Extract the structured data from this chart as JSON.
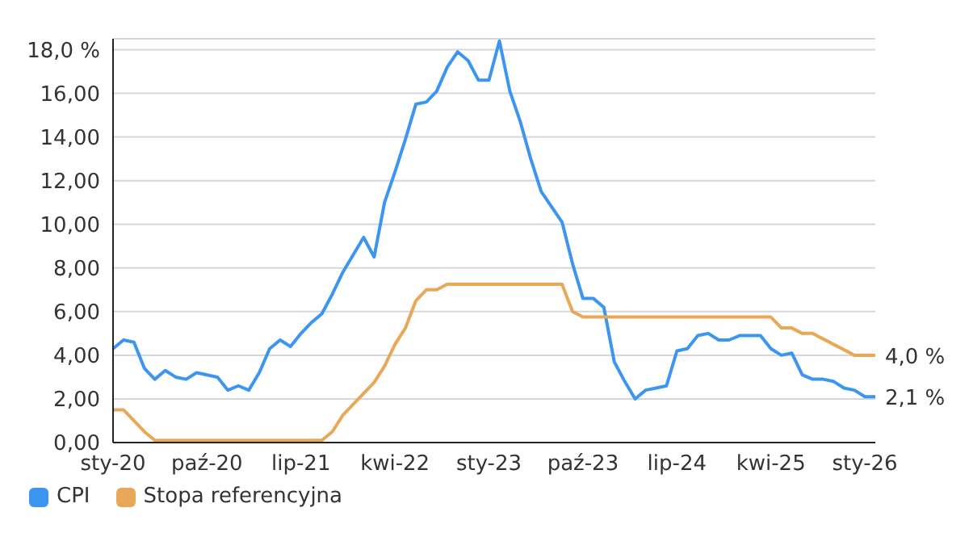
{
  "chart_data": {
    "type": "line",
    "categories": [
      "sty-20",
      null,
      null,
      null,
      null,
      null,
      null,
      null,
      null,
      "paź-20",
      null,
      null,
      null,
      null,
      null,
      null,
      null,
      null,
      "lip-21",
      null,
      null,
      null,
      null,
      null,
      null,
      null,
      null,
      "kwi-22",
      null,
      null,
      null,
      null,
      null,
      null,
      null,
      null,
      "sty-23",
      null,
      null,
      null,
      null,
      null,
      null,
      null,
      null,
      "paź-23",
      null,
      null,
      null,
      null,
      null,
      null,
      null,
      null,
      "lip-24",
      null,
      null,
      null,
      null,
      null,
      null,
      null,
      null,
      "kwi-25",
      null,
      null,
      null,
      null,
      null,
      null,
      null,
      null,
      "sty-26",
      null
    ],
    "series": [
      {
        "name": "CPI",
        "color": "#3c96f0",
        "values": [
          4.3,
          4.7,
          4.6,
          3.4,
          2.9,
          3.3,
          3.0,
          2.9,
          3.2,
          3.1,
          3.0,
          2.4,
          2.6,
          2.4,
          3.2,
          4.3,
          4.7,
          4.4,
          5.0,
          5.5,
          5.9,
          6.8,
          7.8,
          8.6,
          9.4,
          8.5,
          11.0,
          12.4,
          13.9,
          15.5,
          15.6,
          16.1,
          17.2,
          17.9,
          17.5,
          16.6,
          16.6,
          18.4,
          16.1,
          14.7,
          13.0,
          11.5,
          10.8,
          10.1,
          8.2,
          6.6,
          6.6,
          6.2,
          3.7,
          2.8,
          2.0,
          2.4,
          2.5,
          2.6,
          4.2,
          4.3,
          4.9,
          5.0,
          4.7,
          4.7,
          4.9,
          4.9,
          4.9,
          4.3,
          4.0,
          4.1,
          3.1,
          2.9,
          2.9,
          2.8,
          2.5,
          2.4,
          2.1,
          2.1
        ],
        "value_labels": [
          null,
          null,
          null,
          null,
          null,
          null,
          null,
          null,
          null,
          null,
          null,
          null,
          null,
          null,
          null,
          null,
          null,
          null,
          null,
          null,
          null,
          null,
          null,
          null,
          null,
          null,
          null,
          null,
          null,
          null,
          null,
          null,
          null,
          null,
          null,
          null,
          null,
          null,
          null,
          null,
          null,
          null,
          null,
          null,
          null,
          null,
          null,
          null,
          null,
          null,
          null,
          null,
          null,
          null,
          null,
          null,
          null,
          null,
          null,
          null,
          null,
          null,
          null,
          null,
          null,
          null,
          null,
          null,
          null,
          null,
          null,
          null,
          null,
          "2,1 %"
        ]
      },
      {
        "name": "Stopa referencyjna",
        "color": "#e8a857",
        "values": [
          1.5,
          1.5,
          1.0,
          0.5,
          0.1,
          0.1,
          0.1,
          0.1,
          0.1,
          0.1,
          0.1,
          0.1,
          0.1,
          0.1,
          0.1,
          0.1,
          0.1,
          0.1,
          0.1,
          0.1,
          0.1,
          0.5,
          1.25,
          1.75,
          2.25,
          2.75,
          3.5,
          4.5,
          5.25,
          6.5,
          7.0,
          7.0,
          7.25,
          7.25,
          7.25,
          7.25,
          7.25,
          7.25,
          7.25,
          7.25,
          7.25,
          7.25,
          7.25,
          7.25,
          6.0,
          5.75,
          5.75,
          5.75,
          5.75,
          5.75,
          5.75,
          5.75,
          5.75,
          5.75,
          5.75,
          5.75,
          5.75,
          5.75,
          5.75,
          5.75,
          5.75,
          5.75,
          5.75,
          5.75,
          5.25,
          5.25,
          5.0,
          5.0,
          4.75,
          4.5,
          4.25,
          4.0,
          4.0,
          4.0
        ],
        "value_labels": [
          null,
          null,
          null,
          null,
          null,
          null,
          null,
          null,
          null,
          null,
          null,
          null,
          null,
          null,
          null,
          null,
          null,
          null,
          null,
          null,
          null,
          null,
          null,
          null,
          null,
          null,
          null,
          null,
          null,
          null,
          null,
          null,
          null,
          null,
          null,
          null,
          null,
          null,
          null,
          null,
          null,
          null,
          null,
          null,
          null,
          null,
          null,
          null,
          null,
          null,
          null,
          null,
          null,
          null,
          null,
          null,
          null,
          null,
          null,
          null,
          null,
          null,
          null,
          null,
          null,
          null,
          null,
          null,
          null,
          null,
          null,
          null,
          null,
          "4,0 %"
        ]
      }
    ],
    "ylim": [
      0,
      18.5
    ],
    "yticks": [
      {
        "value": 0,
        "label": "0,00"
      },
      {
        "value": 2,
        "label": "2,00"
      },
      {
        "value": 4,
        "label": "4,00"
      },
      {
        "value": 6,
        "label": "6,00"
      },
      {
        "value": 8,
        "label": "8,00"
      },
      {
        "value": 10,
        "label": "10,00"
      },
      {
        "value": 12,
        "label": "12,00"
      },
      {
        "value": 14,
        "label": "14,00"
      },
      {
        "value": 16,
        "label": "16,00"
      },
      {
        "value": 18,
        "label": "18,0 %"
      }
    ],
    "grid": "y",
    "legend": "bottom left",
    "marker": "none",
    "line_style": "solid"
  }
}
